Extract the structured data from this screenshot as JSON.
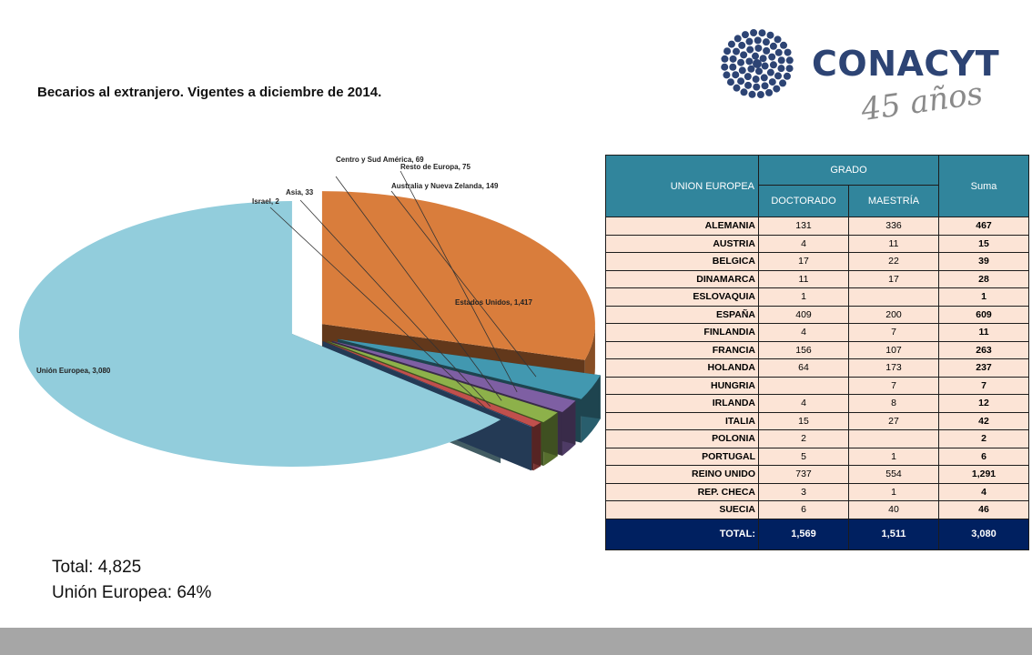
{
  "title": "Becarios al extranjero.  Vigentes a diciembre de 2014.",
  "logo": {
    "name": "CONACYT",
    "tagline": "45 años"
  },
  "chart_data": {
    "type": "pie",
    "title": "",
    "slices": [
      {
        "label": "Unión Europea, 3,080",
        "name": "Unión Europea",
        "value": 3080,
        "color": "#92cddc"
      },
      {
        "label": "Estados Unidos, 1,417",
        "name": "Estados Unidos",
        "value": 1417,
        "color": "#d97d3c"
      },
      {
        "label": "Australia y Nueva Zelanda, 149",
        "name": "Australia y Nueva Zelanda",
        "value": 149,
        "color": "#4298b0"
      },
      {
        "label": "Resto de Europa, 75",
        "name": "Resto de Europa",
        "value": 75,
        "color": "#7e5fa3"
      },
      {
        "label": "Centro y Sud América, 69",
        "name": "Centro y Sud América",
        "value": 69,
        "color": "#8db14a"
      },
      {
        "label": "Asia, 33",
        "name": "Asia",
        "value": 33,
        "color": "#c0504d"
      },
      {
        "label": "Israel, 2",
        "name": "Israel",
        "value": 2,
        "color": "#4f81bd"
      }
    ]
  },
  "totals": {
    "total": "Total: 4,825",
    "ue": "Unión Europea: 64%"
  },
  "table": {
    "header_region": "UNION EUROPEA",
    "header_group": "GRADO",
    "header_sum": "Suma",
    "header_col1": "DOCTORADO",
    "header_col2": "MAESTRÍA",
    "rows": [
      {
        "country": "ALEMANIA",
        "doc": "131",
        "mae": "336",
        "sum": "467"
      },
      {
        "country": "AUSTRIA",
        "doc": "4",
        "mae": "11",
        "sum": "15"
      },
      {
        "country": "BELGICA",
        "doc": "17",
        "mae": "22",
        "sum": "39"
      },
      {
        "country": "DINAMARCA",
        "doc": "11",
        "mae": "17",
        "sum": "28"
      },
      {
        "country": "ESLOVAQUIA",
        "doc": "1",
        "mae": "",
        "sum": "1"
      },
      {
        "country": "ESPAÑA",
        "doc": "409",
        "mae": "200",
        "sum": "609"
      },
      {
        "country": "FINLANDIA",
        "doc": "4",
        "mae": "7",
        "sum": "11"
      },
      {
        "country": "FRANCIA",
        "doc": "156",
        "mae": "107",
        "sum": "263"
      },
      {
        "country": "HOLANDA",
        "doc": "64",
        "mae": "173",
        "sum": "237"
      },
      {
        "country": "HUNGRIA",
        "doc": "",
        "mae": "7",
        "sum": "7"
      },
      {
        "country": "IRLANDA",
        "doc": "4",
        "mae": "8",
        "sum": "12"
      },
      {
        "country": "ITALIA",
        "doc": "15",
        "mae": "27",
        "sum": "42"
      },
      {
        "country": "POLONIA",
        "doc": "2",
        "mae": "",
        "sum": "2"
      },
      {
        "country": "PORTUGAL",
        "doc": "5",
        "mae": "1",
        "sum": "6"
      },
      {
        "country": "REINO UNIDO",
        "doc": "737",
        "mae": "554",
        "sum": "1,291"
      },
      {
        "country": "REP. CHECA",
        "doc": "3",
        "mae": "1",
        "sum": "4"
      },
      {
        "country": "SUECIA",
        "doc": "6",
        "mae": "40",
        "sum": "46"
      }
    ],
    "total_row": {
      "label": "TOTAL:",
      "doc": "1,569",
      "mae": "1,511",
      "sum": "3,080"
    }
  }
}
